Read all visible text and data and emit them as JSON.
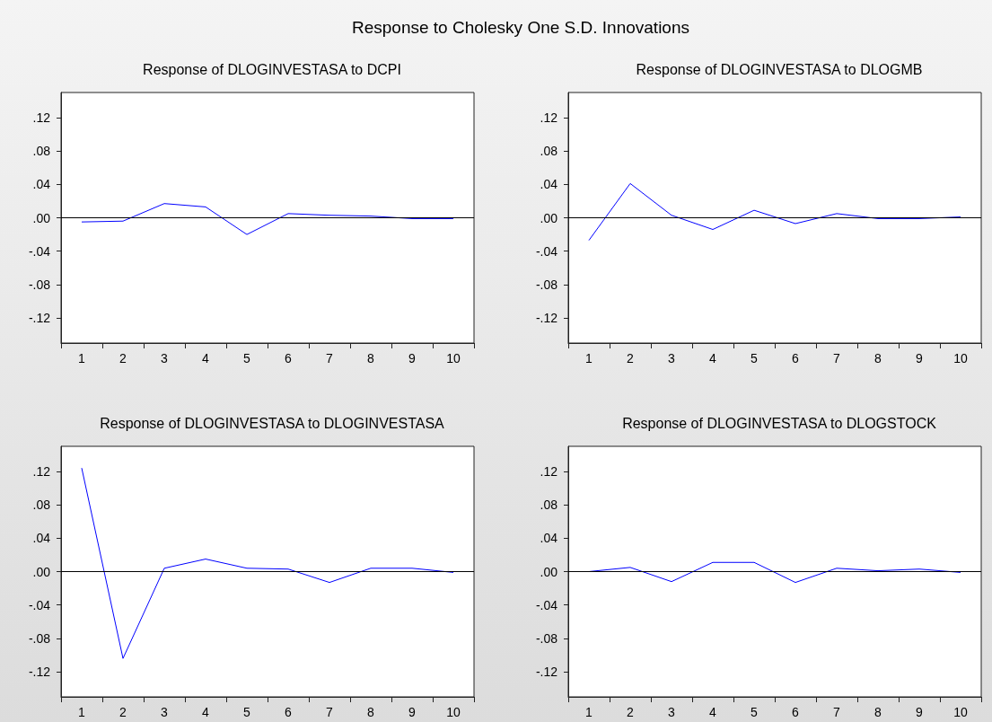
{
  "chart_data": [
    {
      "type": "line",
      "title": "Response of DLOGINVESTASA to DCPI",
      "annotations": [
        "Response to Cholesky One S.D. Innovations"
      ],
      "categories": [
        "1",
        "2",
        "3",
        "4",
        "5",
        "6",
        "7",
        "8",
        "9",
        "10"
      ],
      "series": [
        {
          "color": "#0000ff",
          "values": [
            -0.005,
            -0.004,
            0.017,
            0.013,
            -0.02,
            0.005,
            0.003,
            0.002,
            -0.001,
            -0.001
          ]
        }
      ],
      "ylim": [
        -0.15,
        0.15
      ],
      "yticks": [
        {
          "value": -0.12,
          "label": "-.12"
        },
        {
          "value": -0.08,
          "label": "-.08"
        },
        {
          "value": -0.04,
          "label": "-.04"
        },
        {
          "value": 0,
          "label": ".00"
        },
        {
          "value": 0.04,
          "label": ".04"
        },
        {
          "value": 0.08,
          "label": ".08"
        },
        {
          "value": 0.12,
          "label": ".12"
        }
      ],
      "ref_lines": [
        {
          "axis": "y",
          "value": 0,
          "color": "#000000"
        }
      ],
      "grid": false,
      "marker": "none",
      "line_style": "solid"
    },
    {
      "type": "line",
      "title": "Response of DLOGINVESTASA to DLOGMB",
      "categories": [
        "1",
        "2",
        "3",
        "4",
        "5",
        "6",
        "7",
        "8",
        "9",
        "10"
      ],
      "series": [
        {
          "color": "#0000ff",
          "values": [
            -0.027,
            0.041,
            0.003,
            -0.014,
            0.009,
            -0.007,
            0.005,
            -0.001,
            -0.001,
            0.001
          ]
        }
      ],
      "ylim": [
        -0.15,
        0.15
      ],
      "yticks": [
        {
          "value": -0.12,
          "label": "-.12"
        },
        {
          "value": -0.08,
          "label": "-.08"
        },
        {
          "value": -0.04,
          "label": "-.04"
        },
        {
          "value": 0,
          "label": ".00"
        },
        {
          "value": 0.04,
          "label": ".04"
        },
        {
          "value": 0.08,
          "label": ".08"
        },
        {
          "value": 0.12,
          "label": ".12"
        }
      ],
      "ref_lines": [
        {
          "axis": "y",
          "value": 0,
          "color": "#000000"
        }
      ],
      "grid": false,
      "marker": "none",
      "line_style": "solid"
    },
    {
      "type": "line",
      "title": "Response of DLOGINVESTASA to DLOGINVESTASA",
      "categories": [
        "1",
        "2",
        "3",
        "4",
        "5",
        "6",
        "7",
        "8",
        "9",
        "10"
      ],
      "series": [
        {
          "color": "#0000ff",
          "values": [
            0.124,
            -0.104,
            0.004,
            0.015,
            0.004,
            0.003,
            -0.013,
            0.004,
            0.004,
            -0.001
          ]
        }
      ],
      "ylim": [
        -0.15,
        0.15
      ],
      "yticks": [
        {
          "value": -0.12,
          "label": "-.12"
        },
        {
          "value": -0.08,
          "label": "-.08"
        },
        {
          "value": -0.04,
          "label": "-.04"
        },
        {
          "value": 0,
          "label": ".00"
        },
        {
          "value": 0.04,
          "label": ".04"
        },
        {
          "value": 0.08,
          "label": ".08"
        },
        {
          "value": 0.12,
          "label": ".12"
        }
      ],
      "ref_lines": [
        {
          "axis": "y",
          "value": 0,
          "color": "#000000"
        }
      ],
      "grid": false,
      "marker": "none",
      "line_style": "solid"
    },
    {
      "type": "line",
      "title": "Response of DLOGINVESTASA to DLOGSTOCK",
      "categories": [
        "1",
        "2",
        "3",
        "4",
        "5",
        "6",
        "7",
        "8",
        "9",
        "10"
      ],
      "series": [
        {
          "color": "#0000ff",
          "values": [
            0.0,
            0.005,
            -0.012,
            0.011,
            0.011,
            -0.013,
            0.004,
            0.001,
            0.003,
            -0.001
          ]
        }
      ],
      "ylim": [
        -0.15,
        0.15
      ],
      "yticks": [
        {
          "value": -0.12,
          "label": "-.12"
        },
        {
          "value": -0.08,
          "label": "-.08"
        },
        {
          "value": -0.04,
          "label": "-.04"
        },
        {
          "value": 0,
          "label": ".00"
        },
        {
          "value": 0.04,
          "label": ".04"
        },
        {
          "value": 0.08,
          "label": ".08"
        },
        {
          "value": 0.12,
          "label": ".12"
        }
      ],
      "ref_lines": [
        {
          "axis": "y",
          "value": 0,
          "color": "#000000"
        }
      ],
      "grid": false,
      "marker": "none",
      "line_style": "solid"
    }
  ]
}
